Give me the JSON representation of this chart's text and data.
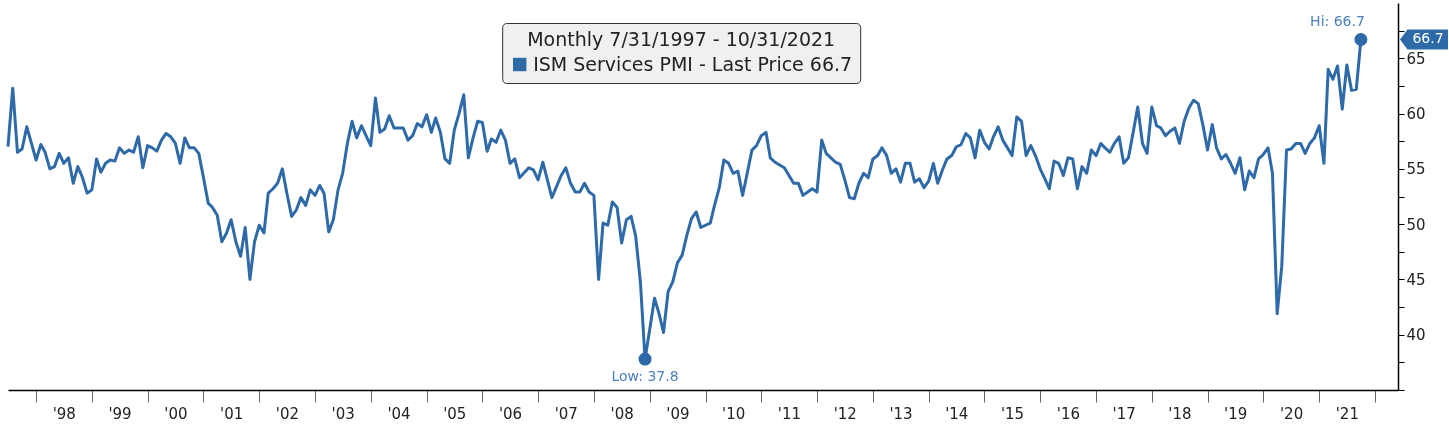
{
  "chart_data": {
    "type": "line",
    "legend_title": "Monthly 7/31/1997 - 10/31/2021",
    "legend": "top",
    "xlim": [
      "1997-07",
      "2022-06"
    ],
    "ylim": [
      35,
      70
    ],
    "xticks": [
      {
        "value": "1998",
        "label": null
      },
      {
        "value": "1998-07",
        "label": "'98"
      },
      {
        "value": "1999",
        "label": null
      },
      {
        "value": "1999-07",
        "label": "'99"
      },
      {
        "value": "2000",
        "label": null
      },
      {
        "value": "2000-07",
        "label": "'00"
      },
      {
        "value": "2001",
        "label": null
      },
      {
        "value": "2001-07",
        "label": "'01"
      },
      {
        "value": "2002",
        "label": null
      },
      {
        "value": "2002-07",
        "label": "'02"
      },
      {
        "value": "2003",
        "label": null
      },
      {
        "value": "2003-07",
        "label": "'03"
      },
      {
        "value": "2004",
        "label": null
      },
      {
        "value": "2004-07",
        "label": "'04"
      },
      {
        "value": "2005",
        "label": null
      },
      {
        "value": "2005-07",
        "label": "'05"
      },
      {
        "value": "2006",
        "label": null
      },
      {
        "value": "2006-07",
        "label": "'06"
      },
      {
        "value": "2007",
        "label": null
      },
      {
        "value": "2007-07",
        "label": "'07"
      },
      {
        "value": "2008",
        "label": null
      },
      {
        "value": "2008-07",
        "label": "'08"
      },
      {
        "value": "2009",
        "label": null
      },
      {
        "value": "2009-07",
        "label": "'09"
      },
      {
        "value": "2010",
        "label": null
      },
      {
        "value": "2010-07",
        "label": "'10"
      },
      {
        "value": "2011",
        "label": null
      },
      {
        "value": "2011-07",
        "label": "'11"
      },
      {
        "value": "2012",
        "label": null
      },
      {
        "value": "2012-07",
        "label": "'12"
      },
      {
        "value": "2013",
        "label": null
      },
      {
        "value": "2013-07",
        "label": "'13"
      },
      {
        "value": "2014",
        "label": null
      },
      {
        "value": "2014-07",
        "label": "'14"
      },
      {
        "value": "2015",
        "label": null
      },
      {
        "value": "2015-07",
        "label": "'15"
      },
      {
        "value": "2016",
        "label": null
      },
      {
        "value": "2016-07",
        "label": "'16"
      },
      {
        "value": "2017",
        "label": null
      },
      {
        "value": "2017-07",
        "label": "'17"
      },
      {
        "value": "2018",
        "label": null
      },
      {
        "value": "2018-07",
        "label": "'18"
      },
      {
        "value": "2019",
        "label": null
      },
      {
        "value": "2019-07",
        "label": "'19"
      },
      {
        "value": "2020",
        "label": null
      },
      {
        "value": "2020-07",
        "label": "'20"
      },
      {
        "value": "2021",
        "label": null
      },
      {
        "value": "2021-07",
        "label": "'21"
      },
      {
        "value": "2022",
        "label": null
      }
    ],
    "yticks": [
      {
        "value": 35,
        "label": null
      },
      {
        "value": 37.5,
        "label": null
      },
      40,
      {
        "value": 42.5,
        "label": null
      },
      45,
      {
        "value": 47.5,
        "label": null
      },
      50,
      {
        "value": 52.5,
        "label": null
      },
      55,
      {
        "value": 57.5,
        "label": null
      },
      60,
      {
        "value": 62.5,
        "label": null
      },
      65,
      {
        "value": 67.5,
        "label": null
      }
    ],
    "annotations": [
      {
        "text": "Hi: 66.7",
        "x": "2021-10",
        "y": 66.7
      },
      {
        "text": "Low: 37.8",
        "x": "2008-12",
        "y": 37.8
      },
      "66.7"
    ],
    "x": [
      "1997-07",
      "1997-08",
      "1997-09",
      "1997-10",
      "1997-11",
      "1998-01",
      "1998-02",
      "1998-03",
      "1998-04",
      "1998-05",
      "1998-06",
      "1998-07",
      "1998-08",
      "1998-09",
      "1998-10",
      "1998-11",
      "1998-12",
      "1999-01",
      "1999-02",
      "1999-03",
      "1999-04",
      "1999-05",
      "1999-06",
      "1999-07",
      "1999-08",
      "1999-09",
      "1999-10",
      "1999-11",
      "1999-12",
      "2000-01",
      "2000-02",
      "2000-03",
      "2000-04",
      "2000-05",
      "2000-06",
      "2000-07",
      "2000-08",
      "2000-09",
      "2000-10",
      "2000-11",
      "2000-12",
      "2001-01",
      "2001-02",
      "2001-03",
      "2001-04",
      "2001-05",
      "2001-06",
      "2001-07",
      "2001-08",
      "2001-09",
      "2001-10",
      "2001-11",
      "2001-12",
      "2002-01",
      "2002-02",
      "2002-03",
      "2002-04",
      "2002-05",
      "2002-06",
      "2002-07",
      "2002-08",
      "2002-09",
      "2002-10",
      "2002-11",
      "2002-12",
      "2003-01",
      "2003-02",
      "2003-03",
      "2003-04",
      "2003-05",
      "2003-06",
      "2003-07",
      "2003-08",
      "2003-09",
      "2003-10",
      "2003-11",
      "2003-12",
      "2004-01",
      "2004-02",
      "2004-03",
      "2004-04",
      "2004-05",
      "2004-06",
      "2004-08",
      "2004-09",
      "2004-10",
      "2004-11",
      "2004-12",
      "2005-01",
      "2005-02",
      "2005-03",
      "2005-04",
      "2005-05",
      "2005-06",
      "2005-07",
      "2005-08",
      "2005-09",
      "2005-10",
      "2005-11",
      "2005-12",
      "2006-01",
      "2006-02",
      "2006-03",
      "2006-04",
      "2006-05",
      "2006-06",
      "2006-07",
      "2006-08",
      "2006-09",
      "2006-11",
      "2006-12",
      "2007-01",
      "2007-02",
      "2007-03",
      "2007-04",
      "2007-06",
      "2007-07",
      "2007-08",
      "2007-09",
      "2007-10",
      "2007-11",
      "2007-12",
      "2008-01",
      "2008-02",
      "2008-03",
      "2008-04",
      "2008-05",
      "2008-06",
      "2008-07",
      "2008-08",
      "2008-09",
      "2008-10",
      "2008-11",
      "2008-12",
      "2009-01",
      "2009-02",
      "2009-03",
      "2009-04",
      "2009-05",
      "2009-06",
      "2009-07",
      "2009-08",
      "2009-09",
      "2009-10",
      "2009-11",
      "2009-12",
      "2010-01",
      "2010-02",
      "2010-03",
      "2010-04",
      "2010-05",
      "2010-06",
      "2010-07",
      "2010-08",
      "2010-09",
      "2010-10",
      "2010-11",
      "2010-12",
      "2011-01",
      "2011-02",
      "2011-03",
      "2011-04",
      "2011-06",
      "2011-08",
      "2011-09",
      "2011-10",
      "2011-11",
      "2011-12",
      "2012-01",
      "2012-02",
      "2012-03",
      "2012-04",
      "2012-05",
      "2012-06",
      "2012-07",
      "2012-08",
      "2012-09",
      "2012-10",
      "2012-11",
      "2012-12",
      "2013-01",
      "2013-02",
      "2013-03",
      "2013-04",
      "2013-05",
      "2013-06",
      "2013-07",
      "2013-08",
      "2013-09",
      "2013-10",
      "2013-11",
      "2013-12",
      "2014-01",
      "2014-02",
      "2014-03",
      "2014-04",
      "2014-05",
      "2014-06",
      "2014-07",
      "2014-08",
      "2014-09",
      "2014-10",
      "2014-11",
      "2014-12",
      "2015-01",
      "2015-02",
      "2015-03",
      "2015-04",
      "2015-05",
      "2015-06",
      "2015-07",
      "2015-08",
      "2015-09",
      "2015-10",
      "2015-11",
      "2015-12",
      "2016-01",
      "2016-02",
      "2016-03",
      "2016-04",
      "2016-05",
      "2016-06",
      "2016-07",
      "2016-08",
      "2016-09",
      "2016-10",
      "2016-11",
      "2016-12",
      "2017-01",
      "2017-02",
      "2017-03",
      "2017-04",
      "2017-05",
      "2017-06",
      "2017-07",
      "2017-08",
      "2017-09",
      "2017-10",
      "2017-11",
      "2017-12",
      "2018-01",
      "2018-02",
      "2018-03",
      "2018-04",
      "2018-05",
      "2018-06",
      "2018-07",
      "2018-08",
      "2018-09",
      "2018-10",
      "2018-11",
      "2018-12",
      "2019-01",
      "2019-02",
      "2019-03",
      "2019-04",
      "2019-05",
      "2019-06",
      "2019-07",
      "2019-08",
      "2019-09",
      "2019-10",
      "2019-11",
      "2019-12",
      "2020-01",
      "2020-02",
      "2020-03",
      "2020-04",
      "2020-05",
      "2020-06",
      "2020-07",
      "2020-08",
      "2020-09",
      "2020-10",
      "2020-11",
      "2020-12",
      "2021-01",
      "2021-02",
      "2021-03",
      "2021-04",
      "2021-05",
      "2021-06",
      "2021-07",
      "2021-08",
      "2021-09",
      "2021-10"
    ],
    "series": [
      {
        "name": "ISM Services PMI - Last Price 66.7",
        "color": "#2e6aa8",
        "values": [
          57.0,
          62.3,
          56.5,
          56.8,
          58.8,
          55.8,
          57.2,
          56.5,
          55.0,
          55.2,
          56.4,
          55.5,
          56.0,
          53.7,
          55.2,
          54.2,
          52.8,
          53.1,
          55.9,
          54.7,
          55.5,
          55.8,
          55.7,
          56.9,
          56.4,
          56.7,
          56.5,
          57.9,
          55.1,
          57.1,
          56.9,
          56.6,
          57.6,
          58.2,
          57.9,
          57.3,
          55.5,
          57.8,
          56.9,
          56.9,
          56.4,
          54.2,
          51.9,
          51.5,
          50.8,
          48.4,
          49.2,
          50.4,
          48.4,
          47.1,
          49.7,
          45.0,
          48.4,
          49.9,
          49.2,
          52.8,
          53.2,
          53.7,
          55.0,
          52.8,
          50.7,
          51.3,
          52.4,
          51.7,
          53.1,
          52.6,
          53.5,
          52.8,
          49.3,
          50.4,
          53.1,
          54.6,
          57.3,
          59.3,
          57.8,
          58.9,
          58.0,
          57.1,
          61.4,
          58.3,
          58.6,
          59.8,
          58.7,
          58.7,
          57.6,
          58.0,
          59.1,
          58.8,
          59.9,
          58.3,
          59.6,
          58.3,
          55.9,
          55.5,
          58.5,
          60.0,
          61.7,
          56.0,
          57.8,
          59.3,
          59.2,
          56.6,
          57.7,
          57.4,
          58.5,
          57.6,
          55.5,
          55.9,
          54.2,
          55.1,
          54.9,
          54.0,
          55.6,
          54.1,
          52.4,
          54.4,
          55.1,
          53.7,
          52.9,
          52.9,
          53.7,
          52.9,
          52.6,
          45.0,
          50.1,
          49.9,
          52.0,
          51.5,
          48.3,
          50.4,
          50.7,
          48.9,
          44.7,
          37.8,
          40.5,
          43.3,
          42.0,
          40.2,
          43.9,
          44.8,
          46.5,
          47.2,
          49.0,
          50.5,
          51.1,
          49.7,
          49.9,
          50.1,
          51.7,
          53.3,
          55.8,
          55.5,
          54.6,
          54.8,
          52.6,
          54.6,
          56.7,
          57.1,
          58.0,
          58.3,
          56.0,
          55.6,
          55.1,
          53.7,
          53.7,
          52.6,
          52.9,
          53.2,
          52.9,
          57.6,
          56.4,
          56.0,
          55.6,
          55.4,
          54.0,
          52.4,
          52.3,
          53.7,
          54.6,
          54.2,
          55.9,
          56.2,
          56.9,
          56.2,
          54.6,
          55.0,
          53.8,
          55.5,
          55.5,
          53.8,
          54.1,
          53.3,
          53.9,
          55.5,
          53.7,
          54.9,
          55.9,
          56.2,
          57.0,
          57.2,
          58.2,
          57.8,
          56.0,
          58.5,
          57.4,
          56.8,
          57.9,
          58.8,
          57.6,
          56.9,
          56.2,
          59.7,
          59.3,
          56.2,
          57.1,
          56.2,
          55.0,
          54.1,
          53.2,
          55.7,
          55.5,
          54.4,
          56.0,
          55.9,
          53.2,
          55.2,
          54.6,
          56.7,
          56.2,
          57.3,
          56.9,
          56.5,
          57.3,
          57.9,
          55.5,
          56.0,
          58.3,
          60.6,
          57.3,
          56.4,
          60.6,
          58.9,
          58.7,
          58.0,
          58.4,
          58.7,
          57.3,
          59.3,
          60.5,
          61.2,
          60.9,
          59.0,
          56.7,
          59.0,
          56.9,
          55.9,
          56.3,
          55.5,
          54.6,
          56.0,
          53.1,
          54.8,
          54.2,
          55.9,
          56.3,
          56.9,
          54.6,
          41.9,
          46.2,
          56.7,
          56.8,
          57.3,
          57.3,
          56.4,
          57.3,
          57.8,
          58.9,
          55.5,
          64.0,
          63.1,
          64.3,
          60.4,
          64.4,
          62.1,
          62.2,
          66.7
        ]
      }
    ]
  }
}
